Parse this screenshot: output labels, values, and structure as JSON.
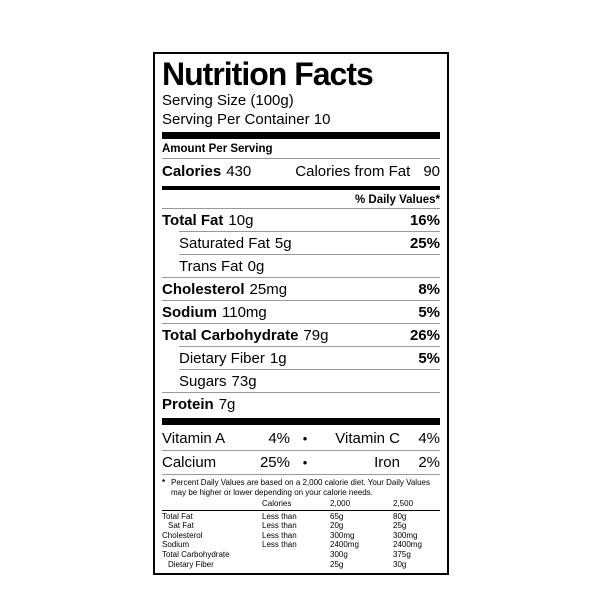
{
  "colors": {
    "text": "#000000",
    "background": "#ffffff",
    "hairline": "#999999"
  },
  "label": {
    "title": "Nutrition Facts",
    "serving_size": "Serving Size (100g)",
    "serving_per_container": "Serving Per Container 10",
    "amount_per_serving": "Amount Per Serving",
    "calories_label": "Calories",
    "calories_value": "430",
    "calories_from_fat_label": "Calories from Fat",
    "calories_from_fat_value": "90",
    "daily_values_header": "% Daily Values*",
    "nutrients": [
      {
        "name": "Total Fat",
        "amount": "10g",
        "dv": "16%"
      },
      {
        "name": "Saturated Fat",
        "amount": "5g",
        "dv": "25%"
      },
      {
        "name": "Trans Fat",
        "amount": "0g",
        "dv": ""
      },
      {
        "name": "Cholesterol",
        "amount": "25mg",
        "dv": "8%"
      },
      {
        "name": "Sodium",
        "amount": "110mg",
        "dv": "5%"
      },
      {
        "name": "Total Carbohydrate",
        "amount": "79g",
        "dv": "26%"
      },
      {
        "name": "Dietary Fiber",
        "amount": "1g",
        "dv": "5%"
      },
      {
        "name": "Sugars",
        "amount": "73g",
        "dv": ""
      },
      {
        "name": "Protein",
        "amount": "7g",
        "dv": ""
      }
    ],
    "bullet": "•",
    "vitamins": [
      {
        "left_name": "Vitamin A",
        "left_value": "4%",
        "right_name": "Vitamin C",
        "right_value": "4%"
      },
      {
        "left_name": "Calcium",
        "left_value": "25%",
        "right_name": "Iron",
        "right_value": "2%"
      }
    ],
    "footnote_marker": "*",
    "footnote": "Percent Daily Values are based on a 2,000 calorie diet. Your Daily Values may be higher or lower depending on your calorie needs.",
    "reference_table": {
      "col_headers": [
        "Calories",
        "2,000",
        "2,500"
      ],
      "rows": [
        {
          "name": "Total Fat",
          "qualifier": "Less than",
          "v2000": "65g",
          "v2500": "80g"
        },
        {
          "name": "Sat Fat",
          "qualifier": "Less than",
          "v2000": "20g",
          "v2500": "25g"
        },
        {
          "name": "Cholesterol",
          "qualifier": "Less than",
          "v2000": "300mg",
          "v2500": "300mg"
        },
        {
          "name": "Sodium",
          "qualifier": "Less than",
          "v2000": "2400mg",
          "v2500": "2400mg"
        },
        {
          "name": "Total Carbohydrate",
          "qualifier": "",
          "v2000": "300g",
          "v2500": "375g"
        },
        {
          "name": "Dietary Fiber",
          "qualifier": "",
          "v2000": "25g",
          "v2500": "30g"
        }
      ]
    }
  }
}
